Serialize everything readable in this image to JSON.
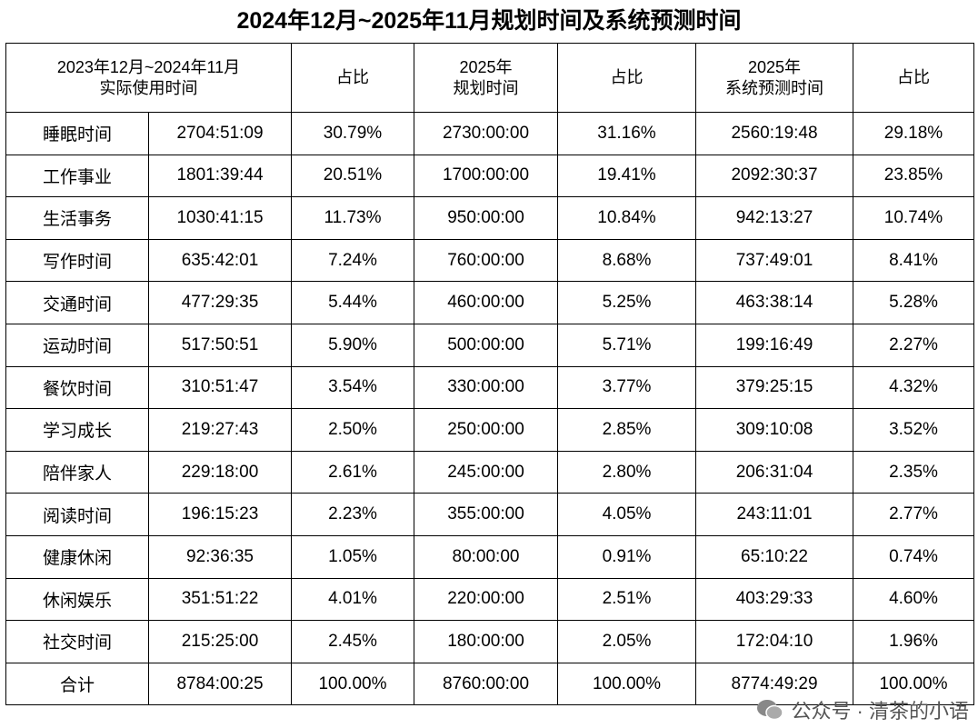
{
  "title": "2024年12月~2025年11月规划时间及系统预测时间",
  "table": {
    "header": [
      [
        "2023年12月~2024年11月",
        "实际使用时间"
      ],
      [
        "占比"
      ],
      [
        "2025年",
        "规划时间"
      ],
      [
        "占比"
      ],
      [
        "2025年",
        "系统预测时间"
      ],
      [
        "占比"
      ]
    ],
    "rows": [
      [
        "睡眠时间",
        "2704:51:09",
        "30.79%",
        "2730:00:00",
        "31.16%",
        "2560:19:48",
        "29.18%"
      ],
      [
        "工作事业",
        "1801:39:44",
        "20.51%",
        "1700:00:00",
        "19.41%",
        "2092:30:37",
        "23.85%"
      ],
      [
        "生活事务",
        "1030:41:15",
        "11.73%",
        "950:00:00",
        "10.84%",
        "942:13:27",
        "10.74%"
      ],
      [
        "写作时间",
        "635:42:01",
        "7.24%",
        "760:00:00",
        "8.68%",
        "737:49:01",
        "8.41%"
      ],
      [
        "交通时间",
        "477:29:35",
        "5.44%",
        "460:00:00",
        "5.25%",
        "463:38:14",
        "5.28%"
      ],
      [
        "运动时间",
        "517:50:51",
        "5.90%",
        "500:00:00",
        "5.71%",
        "199:16:49",
        "2.27%"
      ],
      [
        "餐饮时间",
        "310:51:47",
        "3.54%",
        "330:00:00",
        "3.77%",
        "379:25:15",
        "4.32%"
      ],
      [
        "学习成长",
        "219:27:43",
        "2.50%",
        "250:00:00",
        "2.85%",
        "309:10:08",
        "3.52%"
      ],
      [
        "陪伴家人",
        "229:18:00",
        "2.61%",
        "245:00:00",
        "2.80%",
        "206:31:04",
        "2.35%"
      ],
      [
        "阅读时间",
        "196:15:23",
        "2.23%",
        "355:00:00",
        "4.05%",
        "243:11:01",
        "2.77%"
      ],
      [
        "健康休闲",
        "92:36:35",
        "1.05%",
        "80:00:00",
        "0.91%",
        "65:10:22",
        "0.74%"
      ],
      [
        "休闲娱乐",
        "351:51:22",
        "4.01%",
        "220:00:00",
        "2.51%",
        "403:29:33",
        "4.60%"
      ],
      [
        "社交时间",
        "215:25:00",
        "2.45%",
        "180:00:00",
        "2.05%",
        "172:04:10",
        "1.96%"
      ],
      [
        "合计",
        "8784:00:25",
        "100.00%",
        "8760:00:00",
        "100.00%",
        "8774:49:29",
        "100.00%"
      ]
    ]
  },
  "watermark": "公众号 · 清茶的小语"
}
